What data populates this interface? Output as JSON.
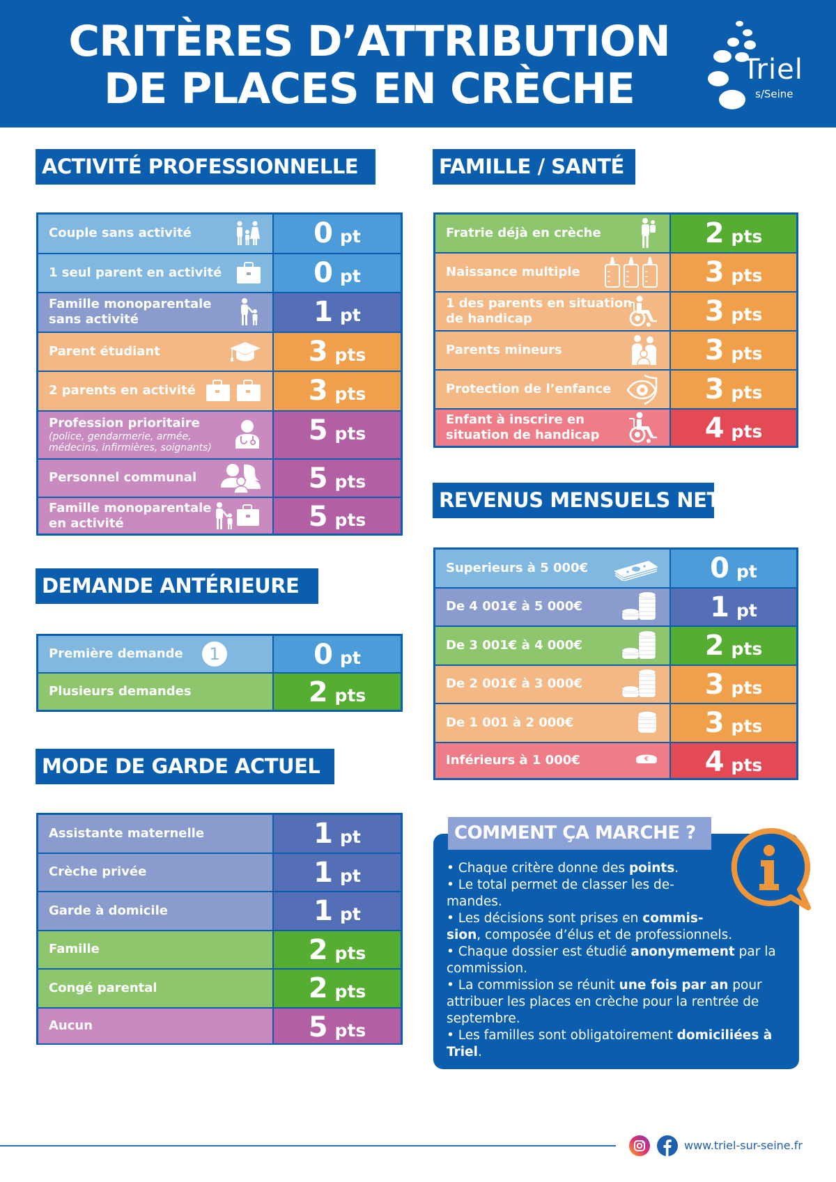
{
  "header": {
    "title_line1": "CRITÈRES D’ATTRIBUTION",
    "title_line2": "DE PLACES EN CRÈCHE",
    "logo_word": "Triel",
    "logo_sub": "s/Seine"
  },
  "colors": {
    "brand_blue": "#0a5ead",
    "light_blue_label": "#80b8e2",
    "light_blue_pts": "#4b9cd8",
    "periwinkle_label": "#8a9bcd",
    "periwinkle_pts": "#546fb6",
    "orange_label": "#f4b884",
    "orange_pts": "#f0a04b",
    "purple_label": "#c98abf",
    "purple_pts": "#b25fa3",
    "green_label": "#8dc66d",
    "green_pts": "#55ad32",
    "red_label": "#ee7d87",
    "red_pts": "#e34a56",
    "info_orange": "#f0963a"
  },
  "sections": {
    "activite": {
      "title": "ACTIVITÉ PROFESSIONNELLE",
      "rows": [
        {
          "label": "Couple sans activité",
          "sub": "",
          "num": "0",
          "unit": "pt",
          "color": "blue",
          "icon": "family-icon"
        },
        {
          "label": "1 seul parent en activité",
          "sub": "",
          "num": "0",
          "unit": "pt",
          "color": "blue",
          "icon": "briefcase-icon"
        },
        {
          "label": "Famille monoparentale sans activité",
          "sub": "",
          "num": "1",
          "unit": "pt",
          "color": "periwinkle",
          "icon": "parent-child-icon"
        },
        {
          "label": "Parent étudiant",
          "sub": "",
          "num": "3",
          "unit": "pts",
          "color": "orange",
          "icon": "graduation-cap-icon"
        },
        {
          "label": "2 parents en activité",
          "sub": "",
          "num": "3",
          "unit": "pts",
          "color": "orange",
          "icon": "two-briefcases-icon"
        },
        {
          "label": "Profession prioritaire",
          "sub": "(police, gendarmerie, armée, médecins, infirmières, soignants)",
          "num": "5",
          "unit": "pts",
          "color": "purple",
          "icon": "doctor-icon"
        },
        {
          "label": "Personnel communal",
          "sub": "",
          "num": "5",
          "unit": "pts",
          "color": "purple",
          "icon": "staff-icon"
        },
        {
          "label": "Famille monoparentale en activité",
          "sub": "",
          "num": "5",
          "unit": "pts",
          "color": "purple",
          "icon": "parent-child-briefcase-icon"
        }
      ]
    },
    "demande": {
      "title": "DEMANDE ANTÉRIEURE",
      "rows": [
        {
          "label": "Première demande",
          "num": "0",
          "unit": "pt",
          "color": "blue",
          "badge": "1"
        },
        {
          "label": "Plusieurs demandes",
          "num": "2",
          "unit": "pts",
          "color": "green"
        }
      ]
    },
    "mode": {
      "title": "MODE DE GARDE ACTUEL",
      "rows": [
        {
          "label": "Assistante maternelle",
          "num": "1",
          "unit": "pt",
          "color": "periwinkle"
        },
        {
          "label": "Crèche privée",
          "num": "1",
          "unit": "pt",
          "color": "periwinkle"
        },
        {
          "label": "Garde à domicile",
          "num": "1",
          "unit": "pt",
          "color": "periwinkle"
        },
        {
          "label": "Famille",
          "num": "2",
          "unit": "pts",
          "color": "green"
        },
        {
          "label": "Congé parental",
          "num": "2",
          "unit": "pts",
          "color": "green"
        },
        {
          "label": "Aucun",
          "num": "5",
          "unit": "pts",
          "color": "purple"
        }
      ]
    },
    "famille": {
      "title": "FAMILLE / SANTÉ",
      "rows": [
        {
          "label": "Fratrie déjà en crèche",
          "num": "2",
          "unit": "pts",
          "color": "green",
          "icon": "parent-carrying-child-icon"
        },
        {
          "label": "Naissance multiple",
          "num": "3",
          "unit": "pts",
          "color": "orange",
          "icon": "baby-bottles-icon"
        },
        {
          "label": "1 des parents en situation de handicap",
          "num": "3",
          "unit": "pts",
          "color": "orange",
          "icon": "wheelchair-icon"
        },
        {
          "label": "Parents mineurs",
          "num": "3",
          "unit": "pts",
          "color": "orange",
          "icon": "young-parents-icon"
        },
        {
          "label": "Protection de l’enfance",
          "num": "3",
          "unit": "pts",
          "color": "orange",
          "icon": "shield-eye-icon"
        },
        {
          "label": "Enfant à inscrire en situation de handicap",
          "num": "4",
          "unit": "pts",
          "color": "red",
          "icon": "wheelchair-icon"
        }
      ]
    },
    "revenus": {
      "title": "REVENUS MENSUELS NET",
      "rows": [
        {
          "label": "Superieurs à 5 000€",
          "num": "0",
          "unit": "pt",
          "color": "blue",
          "icon": "banknotes-icon"
        },
        {
          "label": "De 4 001€ à 5 000€",
          "num": "1",
          "unit": "pt",
          "color": "periwinkle",
          "icon": "coin-stacks-icon"
        },
        {
          "label": "De 3 001€ à 4 000€",
          "num": "2",
          "unit": "pts",
          "color": "green",
          "icon": "coin-stacks-icon"
        },
        {
          "label": "De 2 001€ à 3 000€",
          "num": "3",
          "unit": "pts",
          "color": "orange",
          "icon": "coin-stacks-icon"
        },
        {
          "label": "De 1 001 à 2 000€",
          "num": "3",
          "unit": "pts",
          "color": "orange",
          "icon": "coin-stack-icon"
        },
        {
          "label": "Inférieurs à 1 000€",
          "num": "4",
          "unit": "pts",
          "color": "red",
          "icon": "single-coin-icon"
        }
      ]
    }
  },
  "info": {
    "title": "COMMENT ÇA MARCHE ?",
    "paragraphs": [
      {
        "parts": [
          "• Chaque critère donne des ",
          "points",
          "."
        ]
      },
      {
        "parts": [
          "• Le total permet de classer les de-",
          "",
          ""
        ],
        "line2": "mandes."
      },
      {
        "parts": [
          "• Les décisions sont prises en ",
          "commis-",
          ""
        ],
        "line2_bold": "sion",
        "line2_rest": ", composée d’élus et de professionnels."
      },
      {
        "parts": [
          "• Chaque dossier est étudié ",
          "anonymement",
          " par la"
        ],
        "line2": "commission."
      },
      {
        "parts": [
          "• La commission se réunit ",
          "une fois par an",
          " pour"
        ],
        "line2": "attribuer les places en crèche pour la rentrée de",
        "line3": "septembre."
      },
      {
        "parts": [
          "• Les familles sont obligatoirement ",
          "domiciliées à",
          ""
        ],
        "line2_bold": "Triel",
        "line2_rest": "."
      }
    ]
  },
  "footer": {
    "url": "www.triel-sur-seine.fr"
  }
}
